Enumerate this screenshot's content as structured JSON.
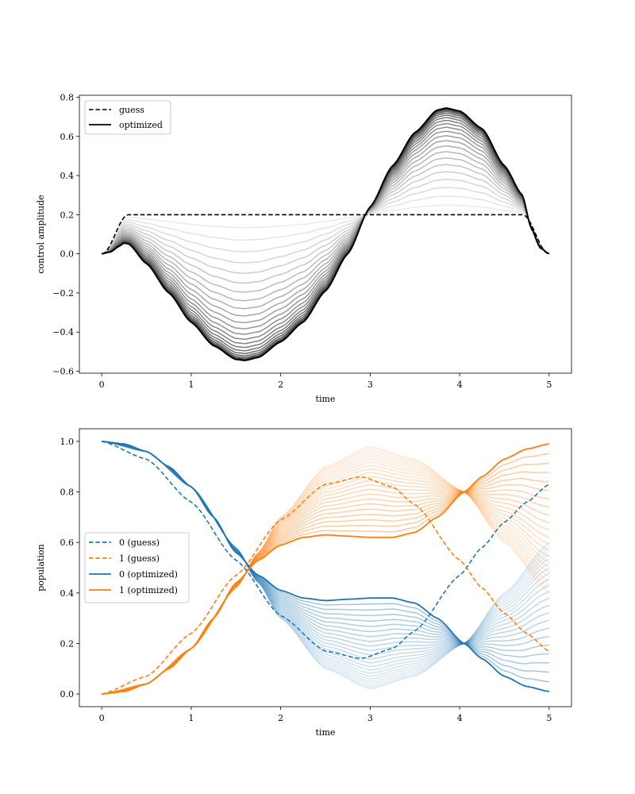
{
  "chart_data": [
    {
      "type": "line",
      "xlabel": "time",
      "ylabel": "control amplitude",
      "xlim": [
        -0.25,
        5.25
      ],
      "ylim": [
        -0.61,
        0.81
      ],
      "xticks": [
        0,
        1,
        2,
        3,
        4,
        5
      ],
      "xtick_labels": [
        "0",
        "1",
        "2",
        "3",
        "4",
        "5"
      ],
      "yticks": [
        -0.6,
        -0.4,
        -0.2,
        0.0,
        0.2,
        0.4,
        0.6,
        0.8
      ],
      "ytick_labels": [
        "−0.6",
        "−0.4",
        "−0.2",
        "0.0",
        "0.2",
        "0.4",
        "0.6",
        "0.8"
      ],
      "legend": {
        "placement": "top-left",
        "entries": [
          "guess",
          "optimized"
        ]
      },
      "grid": false,
      "series": [
        {
          "name": "guess",
          "style": "dashed",
          "color": "#000000",
          "t": [
            0,
            0.05,
            0.1,
            0.15,
            0.2,
            0.25,
            0.3,
            4.7,
            4.75,
            4.8,
            4.85,
            4.9,
            4.95,
            5.0
          ],
          "u": [
            0,
            0.005,
            0.02,
            0.05,
            0.1,
            0.15,
            0.2,
            0.2,
            0.15,
            0.1,
            0.05,
            0.02,
            0.005,
            0
          ]
        },
        {
          "name": "optimized",
          "style": "solid",
          "color": "#000000",
          "t": [
            0,
            0.1,
            0.2,
            0.25,
            0.3,
            0.5,
            0.75,
            1.0,
            1.25,
            1.5,
            1.6,
            1.75,
            2.0,
            2.25,
            2.5,
            2.75,
            3.0,
            3.25,
            3.5,
            3.75,
            3.85,
            4.0,
            4.25,
            4.5,
            4.7,
            4.8,
            4.9,
            5.0
          ],
          "u": [
            0,
            0.01,
            0.04,
            0.055,
            0.05,
            -0.05,
            -0.2,
            -0.35,
            -0.47,
            -0.54,
            -0.545,
            -0.53,
            -0.45,
            -0.35,
            -0.19,
            0.0,
            0.24,
            0.45,
            0.62,
            0.735,
            0.745,
            0.73,
            0.64,
            0.45,
            0.3,
            0.13,
            0.03,
            0
          ]
        }
      ]
    },
    {
      "type": "line",
      "xlabel": "time",
      "ylabel": "population",
      "xlim": [
        -0.25,
        5.25
      ],
      "ylim": [
        -0.05,
        1.05
      ],
      "xticks": [
        0,
        1,
        2,
        3,
        4,
        5
      ],
      "xtick_labels": [
        "0",
        "1",
        "2",
        "3",
        "4",
        "5"
      ],
      "yticks": [
        0.0,
        0.2,
        0.4,
        0.6,
        0.8,
        1.0
      ],
      "ytick_labels": [
        "0.0",
        "0.2",
        "0.4",
        "0.6",
        "0.8",
        "1.0"
      ],
      "legend": {
        "placement": "center-left",
        "entries": [
          "0 (guess)",
          "1 (guess)",
          "0 (optimized)",
          "1 (optimized)"
        ]
      },
      "grid": false,
      "colors": {
        "0": "#1f77b4",
        "1": "#ff7f0e"
      },
      "series": [
        {
          "name": "0 (guess)",
          "style": "dashed",
          "t": [
            0,
            0.5,
            1.0,
            1.5,
            2.0,
            2.5,
            2.9,
            3.25,
            3.5,
            4.0,
            4.25,
            4.5,
            4.75,
            5.0
          ],
          "p": [
            1,
            0.93,
            0.76,
            0.53,
            0.31,
            0.17,
            0.14,
            0.18,
            0.25,
            0.47,
            0.58,
            0.68,
            0.76,
            0.83
          ]
        },
        {
          "name": "1 (guess)",
          "style": "dashed",
          "complement_of": "0 (guess)"
        },
        {
          "name": "0 (optimized)",
          "style": "solid",
          "t": [
            0,
            0.25,
            0.5,
            0.75,
            1.0,
            1.25,
            1.5,
            1.75,
            2.0,
            2.25,
            2.5,
            2.75,
            3.0,
            3.25,
            3.5,
            3.75,
            4.05,
            4.25,
            4.5,
            4.75,
            5.0
          ],
          "p": [
            1,
            0.99,
            0.96,
            0.9,
            0.82,
            0.7,
            0.56,
            0.47,
            0.41,
            0.38,
            0.37,
            0.375,
            0.38,
            0.38,
            0.36,
            0.3,
            0.2,
            0.14,
            0.07,
            0.03,
            0.01
          ]
        },
        {
          "name": "1 (optimized)",
          "style": "solid",
          "complement_of": "0 (optimized)"
        }
      ]
    }
  ]
}
